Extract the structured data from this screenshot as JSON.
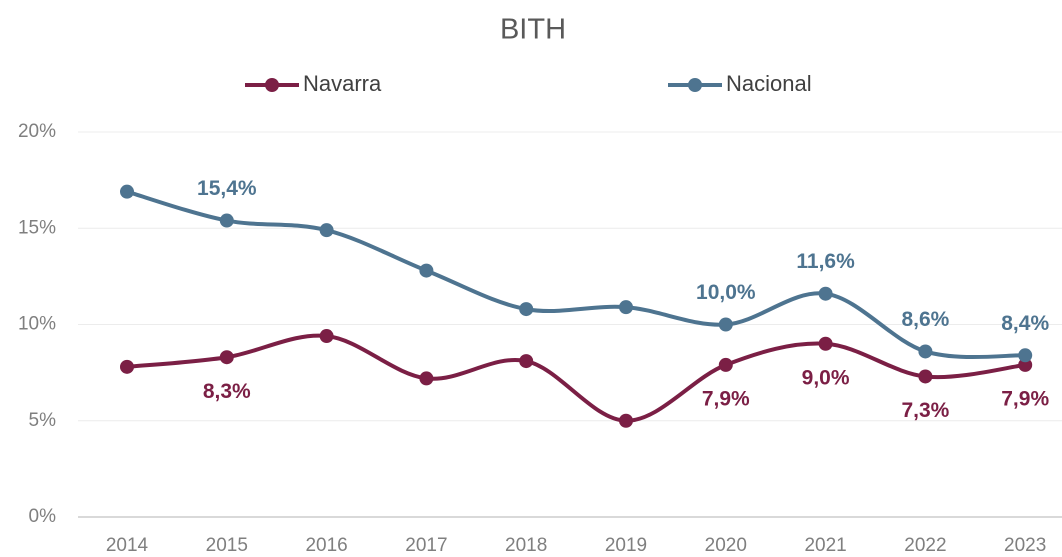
{
  "chart_data": {
    "type": "line",
    "title": "BITH",
    "categories": [
      "2014",
      "2015",
      "2016",
      "2017",
      "2018",
      "2019",
      "2020",
      "2021",
      "2022",
      "2023"
    ],
    "series": [
      {
        "name": "Navarra",
        "color": "#7b1f45",
        "values": [
          7.8,
          8.3,
          9.4,
          7.2,
          8.1,
          5.0,
          7.9,
          9.0,
          7.3,
          7.9
        ],
        "value_labels": [
          null,
          "8,3%",
          null,
          null,
          null,
          null,
          "7,9%",
          "9,0%",
          "7,3%",
          "7,9%"
        ]
      },
      {
        "name": "Nacional",
        "color": "#4e7490",
        "values": [
          16.9,
          15.4,
          14.9,
          12.8,
          10.8,
          10.9,
          10.0,
          11.6,
          8.6,
          8.4
        ],
        "value_labels": [
          null,
          "15,4%",
          null,
          null,
          null,
          null,
          "10,0%",
          "11,6%",
          "8,6%",
          "8,4%"
        ]
      }
    ],
    "ylim": [
      0,
      20
    ],
    "yticks": [
      {
        "value": 0,
        "label": "0%"
      },
      {
        "value": 5,
        "label": "5%"
      },
      {
        "value": 10,
        "label": "10%"
      },
      {
        "value": 15,
        "label": "15%"
      },
      {
        "value": 20,
        "label": "20%"
      }
    ],
    "grid": true,
    "legend": "top"
  }
}
